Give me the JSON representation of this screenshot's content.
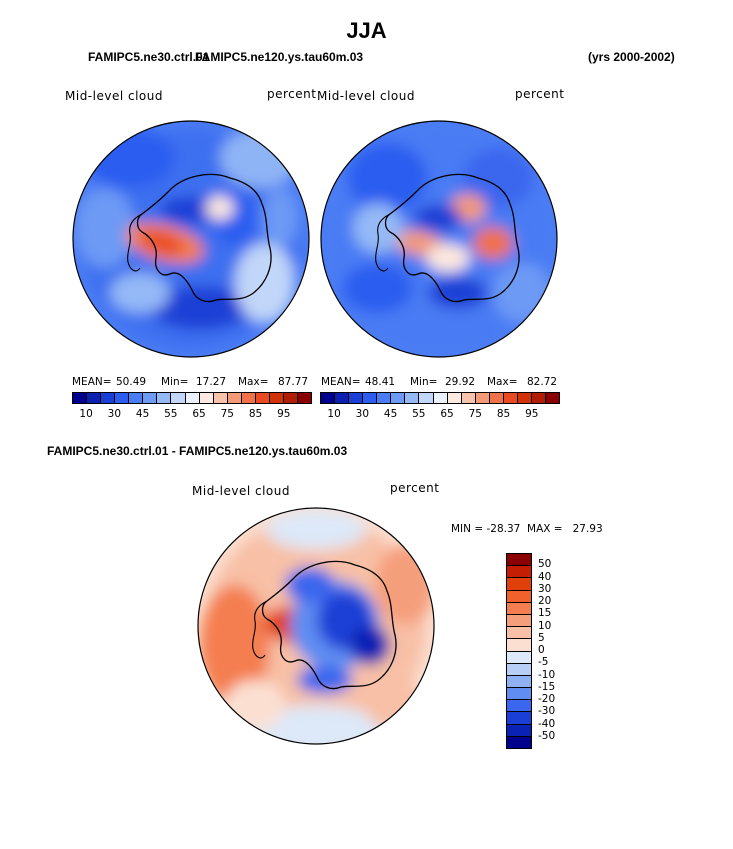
{
  "page": {
    "title": "JJA",
    "case_top_left": "FAMIPC5.ne30.ctrl.01",
    "case_top_overlap": "FAMIPC5.ne120.ys.tau60m.03",
    "years": "(yrs 2000-2002)",
    "diff_title": "FAMIPC5.ne30.ctrl.01 - FAMIPC5.ne120.ys.tau60m.03"
  },
  "chart_data": [
    {
      "type": "heatmap",
      "projection": "south polar stereographic",
      "title": "Mid-level cloud",
      "units": "percent",
      "mean_label": "MEAN=",
      "min_label": "Min=",
      "max_label": "Max=",
      "mean": "50.49",
      "min": "17.27",
      "max": "87.77",
      "colorbar_labels": [
        "10",
        "30",
        "45",
        "55",
        "65",
        "75",
        "85",
        "95"
      ],
      "colorbar_colors": [
        "#00008f",
        "#0b1fb0",
        "#1a3fd6",
        "#2a5df0",
        "#4a7cf4",
        "#6d9af5",
        "#94b9f6",
        "#c1d6f8",
        "#ecf2fb",
        "#fde9df",
        "#f8c3aa",
        "#f59a77",
        "#f1714a",
        "#e94a22",
        "#d23208",
        "#b01c04",
        "#8a0000"
      ]
    },
    {
      "type": "heatmap",
      "projection": "south polar stereographic",
      "title": "Mid-level cloud",
      "units": "percent",
      "mean_label": "MEAN=",
      "min_label": "Min=",
      "max_label": "Max=",
      "mean": "48.41",
      "min": "29.92",
      "max": "82.72",
      "colorbar_labels": [
        "10",
        "30",
        "45",
        "55",
        "65",
        "75",
        "85",
        "95"
      ],
      "colorbar_colors": [
        "#00008f",
        "#0b1fb0",
        "#1a3fd6",
        "#2a5df0",
        "#4a7cf4",
        "#6d9af5",
        "#94b9f6",
        "#c1d6f8",
        "#ecf2fb",
        "#fde9df",
        "#f8c3aa",
        "#f59a77",
        "#f1714a",
        "#e94a22",
        "#d23208",
        "#b01c04",
        "#8a0000"
      ]
    },
    {
      "type": "heatmap",
      "projection": "south polar stereographic",
      "title": "Mid-level cloud",
      "units": "percent",
      "min_max_text": "MIN = -28.37  MAX =   27.93",
      "colorbar_labels": [
        "50",
        "40",
        "30",
        "20",
        "15",
        "10",
        "5",
        "0",
        "-5",
        "-10",
        "-15",
        "-20",
        "-30",
        "-40",
        "-50"
      ],
      "colorbar_colors": [
        "#8a0000",
        "#c41e04",
        "#e0400a",
        "#f0612c",
        "#f47e50",
        "#f59e7c",
        "#f8c0a6",
        "#fbe0d2",
        "#dde8f8",
        "#b7cff6",
        "#8fb0f3",
        "#5f8df2",
        "#3b66ee",
        "#1a3fd6",
        "#0a22b5",
        "#00008f"
      ]
    }
  ]
}
